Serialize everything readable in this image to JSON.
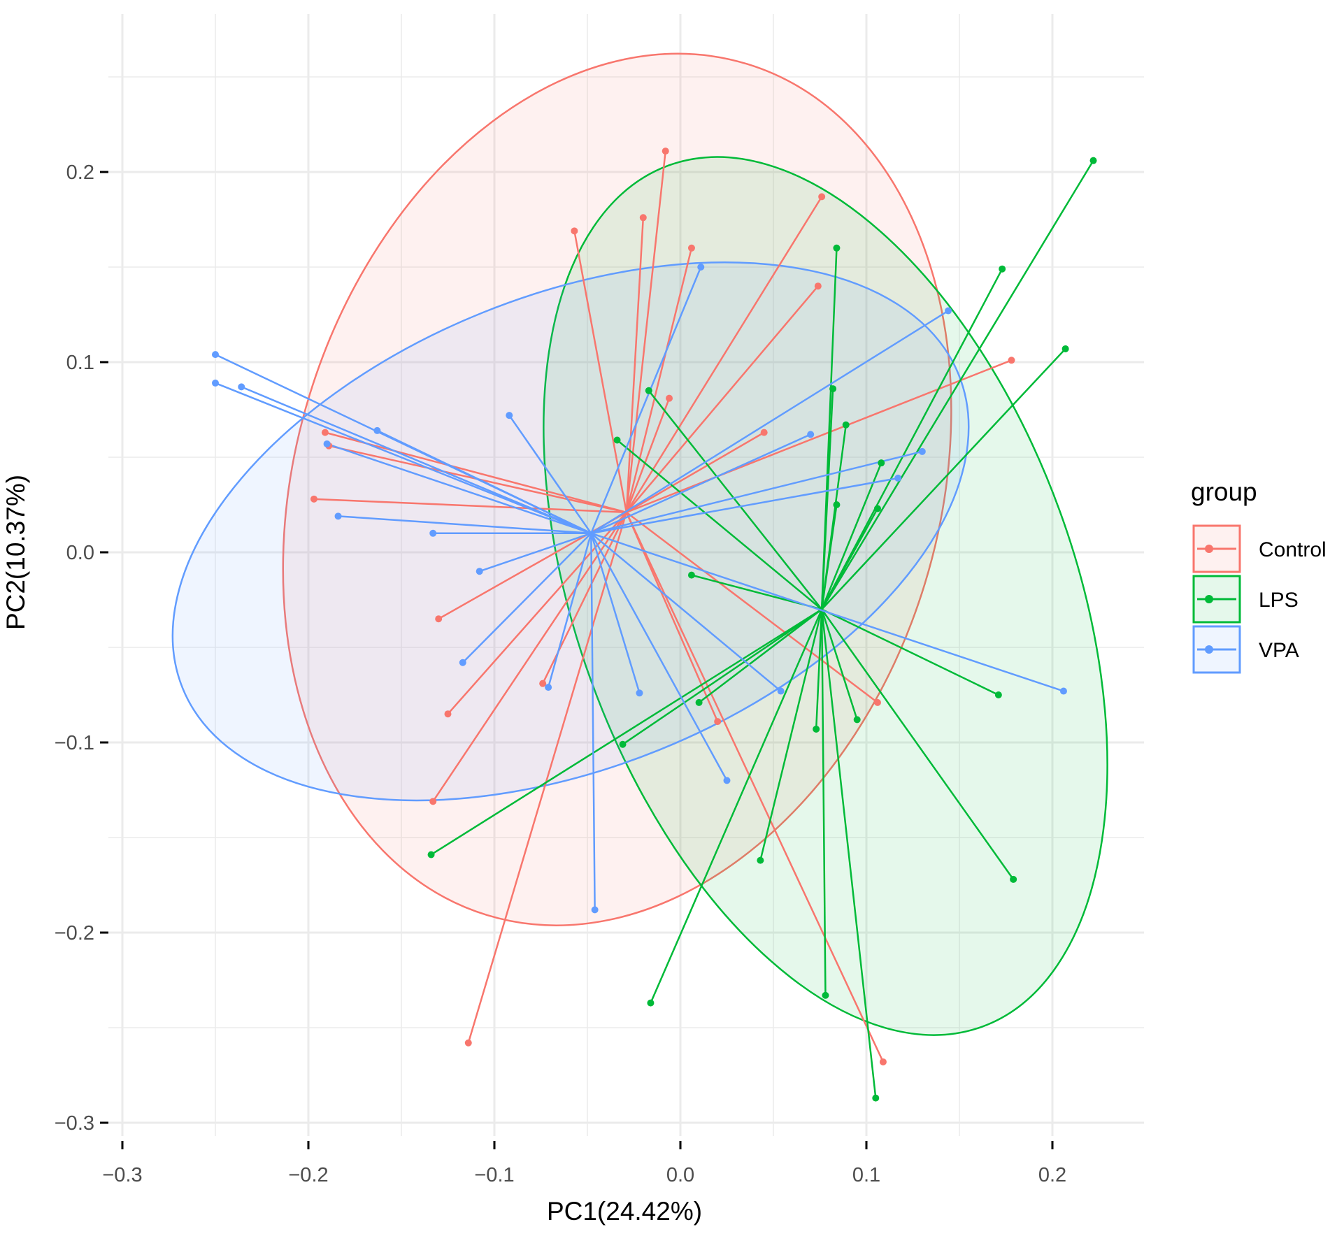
{
  "chart_data": {
    "type": "scatter",
    "subtype": "PCA spider plot with group ellipses",
    "title": "",
    "xlabel": "PC1(24.42%)",
    "ylabel": "PC2(10.37%)",
    "xlim": [
      -0.305,
      0.25
    ],
    "ylim": [
      -0.305,
      0.275
    ],
    "x_ticks": [
      -0.3,
      -0.2,
      -0.1,
      0.0,
      0.1,
      0.2
    ],
    "x_tick_labels": [
      "−0.3",
      "−0.2",
      "−0.1",
      "0.0",
      "0.1",
      "0.2"
    ],
    "y_ticks": [
      -0.3,
      -0.2,
      -0.1,
      0.0,
      0.1,
      0.2
    ],
    "y_tick_labels": [
      "−0.3",
      "−0.2",
      "−0.1",
      "0.0",
      "0.1",
      "0.2"
    ],
    "grid": true,
    "legend": {
      "title": "group",
      "position": "right",
      "entries": [
        "Control",
        "LPS",
        "VPA"
      ]
    },
    "series": [
      {
        "name": "Control",
        "color": "#F8766D",
        "centroid": [
          -0.029,
          0.021
        ],
        "ellipse": {
          "cx": -0.034,
          "cy": 0.033,
          "rx": 0.173,
          "ry": 0.234,
          "angle_deg": -17
        },
        "points": [
          [
            -0.008,
            0.211
          ],
          [
            -0.02,
            0.176
          ],
          [
            -0.057,
            0.169
          ],
          [
            0.006,
            0.16
          ],
          [
            0.076,
            0.187
          ],
          [
            0.074,
            0.14
          ],
          [
            -0.006,
            0.081
          ],
          [
            0.045,
            0.063
          ],
          [
            0.178,
            0.101
          ],
          [
            -0.191,
            0.063
          ],
          [
            -0.189,
            0.056
          ],
          [
            -0.197,
            0.028
          ],
          [
            -0.13,
            -0.035
          ],
          [
            -0.125,
            -0.085
          ],
          [
            -0.074,
            -0.069
          ],
          [
            0.02,
            -0.089
          ],
          [
            0.106,
            -0.079
          ],
          [
            -0.133,
            -0.131
          ],
          [
            -0.114,
            -0.258
          ],
          [
            0.109,
            -0.268
          ]
        ]
      },
      {
        "name": "LPS",
        "color": "#00BA38",
        "centroid": [
          0.076,
          -0.03
        ],
        "ellipse": {
          "cx": 0.078,
          "cy": -0.023,
          "rx": 0.134,
          "ry": 0.241,
          "angle_deg": 20
        },
        "points": [
          [
            0.222,
            0.206
          ],
          [
            0.084,
            0.16
          ],
          [
            0.173,
            0.149
          ],
          [
            0.207,
            0.107
          ],
          [
            0.082,
            0.086
          ],
          [
            -0.017,
            0.085
          ],
          [
            -0.034,
            0.059
          ],
          [
            0.089,
            0.067
          ],
          [
            0.108,
            0.047
          ],
          [
            0.084,
            0.025
          ],
          [
            0.106,
            0.023
          ],
          [
            0.006,
            -0.012
          ],
          [
            0.01,
            -0.079
          ],
          [
            -0.031,
            -0.101
          ],
          [
            0.171,
            -0.075
          ],
          [
            0.095,
            -0.088
          ],
          [
            0.073,
            -0.093
          ],
          [
            0.043,
            -0.162
          ],
          [
            0.179,
            -0.172
          ],
          [
            -0.134,
            -0.159
          ],
          [
            -0.016,
            -0.237
          ],
          [
            0.078,
            -0.233
          ],
          [
            0.105,
            -0.287
          ]
        ]
      },
      {
        "name": "VPA",
        "color": "#619CFF",
        "centroid": [
          -0.048,
          0.01
        ],
        "ellipse": {
          "cx": -0.059,
          "cy": 0.011,
          "rx": 0.225,
          "ry": 0.124,
          "angle_deg": 22
        },
        "points": [
          [
            0.011,
            0.15
          ],
          [
            0.144,
            0.127
          ],
          [
            -0.25,
            0.104
          ],
          [
            -0.236,
            0.087
          ],
          [
            -0.25,
            0.089
          ],
          [
            -0.163,
            0.064
          ],
          [
            -0.19,
            0.057
          ],
          [
            -0.092,
            0.072
          ],
          [
            0.07,
            0.062
          ],
          [
            0.13,
            0.053
          ],
          [
            0.117,
            0.039
          ],
          [
            -0.184,
            0.019
          ],
          [
            -0.133,
            0.01
          ],
          [
            -0.108,
            -0.01
          ],
          [
            -0.117,
            -0.058
          ],
          [
            -0.071,
            -0.071
          ],
          [
            -0.022,
            -0.074
          ],
          [
            0.054,
            -0.073
          ],
          [
            0.025,
            -0.12
          ],
          [
            -0.046,
            -0.188
          ],
          [
            0.206,
            -0.073
          ]
        ]
      }
    ]
  }
}
